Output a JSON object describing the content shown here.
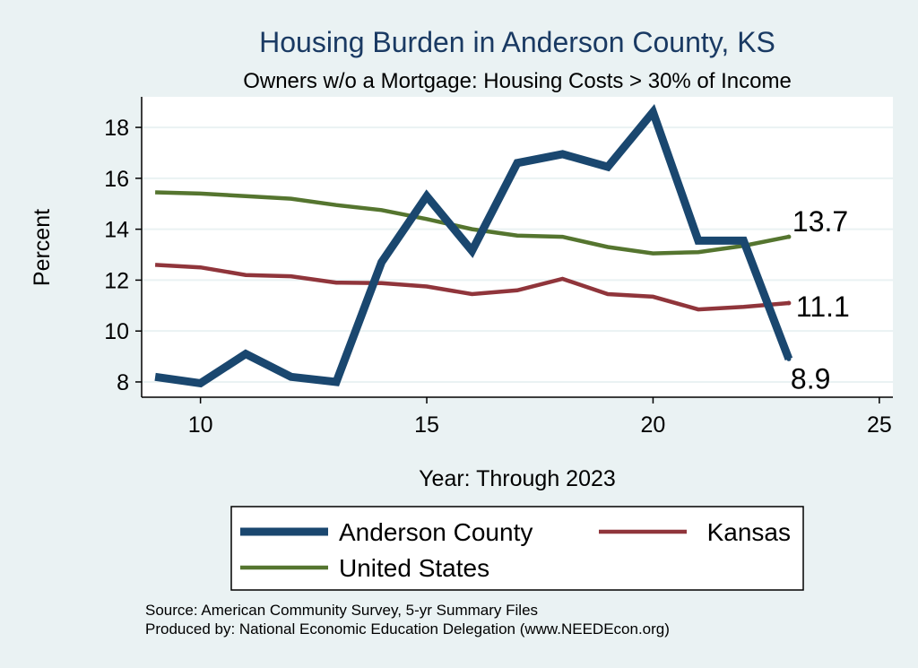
{
  "chart_data": {
    "type": "line",
    "title": "Housing Burden in Anderson County, KS",
    "subtitle": "Owners w/o a Mortgage: Housing Costs > 30% of Income",
    "xlabel": "Year: Through 2023",
    "ylabel": "Percent",
    "xlim": [
      8.7,
      25.3
    ],
    "ylim": [
      7.4,
      19.2
    ],
    "xticks": [
      10,
      15,
      20,
      25
    ],
    "yticks": [
      8,
      10,
      12,
      14,
      16,
      18
    ],
    "grid": true,
    "legend_position": "bottom",
    "series": [
      {
        "name": "Anderson County",
        "color": "#1a476f",
        "x": [
          9,
          10,
          11,
          12,
          13,
          14,
          15,
          16,
          17,
          18,
          19,
          20,
          21,
          22,
          23
        ],
        "y": [
          8.2,
          7.95,
          9.1,
          8.2,
          8.0,
          12.7,
          15.3,
          13.15,
          16.6,
          16.95,
          16.45,
          18.6,
          13.55,
          13.55,
          8.9
        ],
        "end_label": "8.9"
      },
      {
        "name": "Kansas",
        "color": "#90353b",
        "x": [
          9,
          10,
          11,
          12,
          13,
          14,
          15,
          16,
          17,
          18,
          19,
          20,
          21,
          22,
          23
        ],
        "y": [
          12.6,
          12.5,
          12.2,
          12.15,
          11.9,
          11.88,
          11.75,
          11.45,
          11.6,
          12.05,
          11.45,
          11.35,
          10.85,
          10.95,
          11.1
        ],
        "end_label": "11.1"
      },
      {
        "name": "United States",
        "color": "#55752f",
        "x": [
          9,
          10,
          11,
          12,
          13,
          14,
          15,
          16,
          17,
          18,
          19,
          20,
          21,
          22,
          23
        ],
        "y": [
          15.45,
          15.4,
          15.3,
          15.2,
          14.95,
          14.75,
          14.4,
          14.0,
          13.75,
          13.7,
          13.3,
          13.05,
          13.1,
          13.35,
          13.7
        ],
        "end_label": "13.7"
      }
    ]
  },
  "notes": {
    "source": "Source: American Community Survey, 5-yr Summary Files",
    "produced": "Produced by: National Economic Education Delegation (www.NEEDEcon.org)"
  }
}
